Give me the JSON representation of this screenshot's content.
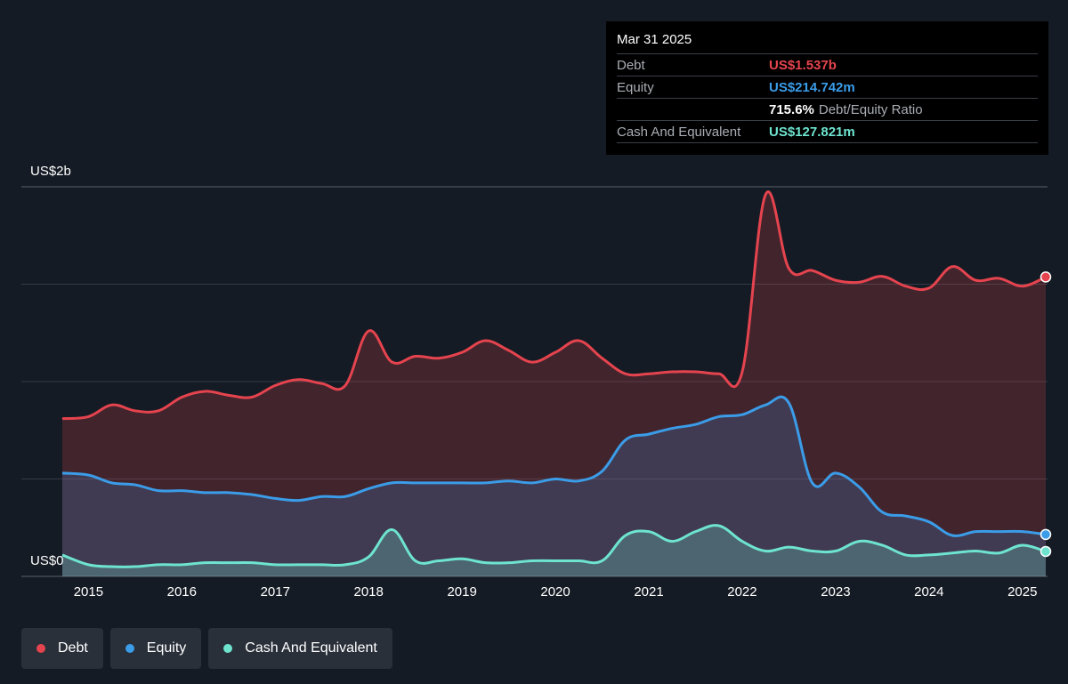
{
  "tooltip": {
    "date": "Mar 31 2025",
    "rows": [
      {
        "label": "Debt",
        "value": "US$1.537b",
        "color": "#e5444e"
      },
      {
        "label": "Equity",
        "value": "US$214.742m",
        "color": "#3b9ce8"
      },
      {
        "label": "Cash And Equivalent",
        "value": "US$127.821m",
        "color": "#6ee4cf"
      }
    ],
    "ratio_value": "715.6%",
    "ratio_label": "Debt/Equity Ratio"
  },
  "legend": [
    {
      "label": "Debt",
      "color": "#e5444e"
    },
    {
      "label": "Equity",
      "color": "#3b9ce8"
    },
    {
      "label": "Cash And Equivalent",
      "color": "#6ee4cf"
    }
  ],
  "chart_data": {
    "type": "area",
    "y_axis": {
      "top_label": "US$2b",
      "bottom_label": "US$0",
      "ylim": [
        0,
        2.0
      ],
      "unit": "US$ billions"
    },
    "x_ticks": [
      "2015",
      "2016",
      "2017",
      "2018",
      "2019",
      "2020",
      "2021",
      "2022",
      "2023",
      "2024",
      "2025"
    ],
    "xlim": [
      2014.72,
      2025.25
    ],
    "grid": true,
    "series": [
      {
        "name": "Debt",
        "color": "#e5444e",
        "x": [
          2014.72,
          2015.0,
          2015.25,
          2015.5,
          2015.75,
          2016.0,
          2016.25,
          2016.5,
          2016.75,
          2017.0,
          2017.25,
          2017.5,
          2017.75,
          2018.0,
          2018.25,
          2018.5,
          2018.75,
          2019.0,
          2019.25,
          2019.5,
          2019.75,
          2020.0,
          2020.25,
          2020.5,
          2020.75,
          2021.0,
          2021.25,
          2021.5,
          2021.75,
          2022.0,
          2022.25,
          2022.5,
          2022.75,
          2023.0,
          2023.25,
          2023.5,
          2023.75,
          2024.0,
          2024.25,
          2024.5,
          2024.75,
          2025.0,
          2025.25
        ],
        "values": [
          0.81,
          0.82,
          0.88,
          0.85,
          0.85,
          0.92,
          0.95,
          0.93,
          0.92,
          0.98,
          1.01,
          0.99,
          0.98,
          1.26,
          1.1,
          1.13,
          1.12,
          1.15,
          1.21,
          1.16,
          1.1,
          1.15,
          1.21,
          1.12,
          1.04,
          1.04,
          1.05,
          1.05,
          1.04,
          1.05,
          1.96,
          1.58,
          1.57,
          1.52,
          1.51,
          1.54,
          1.49,
          1.48,
          1.59,
          1.52,
          1.53,
          1.49,
          1.537
        ]
      },
      {
        "name": "Equity",
        "color": "#3b9ce8",
        "x": [
          2014.72,
          2015.0,
          2015.25,
          2015.5,
          2015.75,
          2016.0,
          2016.25,
          2016.5,
          2016.75,
          2017.0,
          2017.25,
          2017.5,
          2017.75,
          2018.0,
          2018.25,
          2018.5,
          2018.75,
          2019.0,
          2019.25,
          2019.5,
          2019.75,
          2020.0,
          2020.25,
          2020.5,
          2020.75,
          2021.0,
          2021.25,
          2021.5,
          2021.75,
          2022.0,
          2022.25,
          2022.5,
          2022.75,
          2023.0,
          2023.25,
          2023.5,
          2023.75,
          2024.0,
          2024.25,
          2024.5,
          2024.75,
          2025.0,
          2025.25
        ],
        "values": [
          0.53,
          0.52,
          0.48,
          0.47,
          0.44,
          0.44,
          0.43,
          0.43,
          0.42,
          0.4,
          0.39,
          0.41,
          0.41,
          0.45,
          0.48,
          0.48,
          0.48,
          0.48,
          0.48,
          0.49,
          0.48,
          0.5,
          0.49,
          0.54,
          0.7,
          0.73,
          0.76,
          0.78,
          0.82,
          0.83,
          0.88,
          0.89,
          0.48,
          0.53,
          0.46,
          0.33,
          0.31,
          0.28,
          0.21,
          0.23,
          0.23,
          0.23,
          0.215
        ]
      },
      {
        "name": "Cash And Equivalent",
        "color": "#6ee4cf",
        "x": [
          2014.72,
          2015.0,
          2015.25,
          2015.5,
          2015.75,
          2016.0,
          2016.25,
          2016.5,
          2016.75,
          2017.0,
          2017.25,
          2017.5,
          2017.75,
          2018.0,
          2018.25,
          2018.5,
          2018.75,
          2019.0,
          2019.25,
          2019.5,
          2019.75,
          2020.0,
          2020.25,
          2020.5,
          2020.75,
          2021.0,
          2021.25,
          2021.5,
          2021.75,
          2022.0,
          2022.25,
          2022.5,
          2022.75,
          2023.0,
          2023.25,
          2023.5,
          2023.75,
          2024.0,
          2024.25,
          2024.5,
          2024.75,
          2025.0,
          2025.25
        ],
        "values": [
          0.11,
          0.06,
          0.05,
          0.05,
          0.06,
          0.06,
          0.07,
          0.07,
          0.07,
          0.06,
          0.06,
          0.06,
          0.06,
          0.1,
          0.24,
          0.08,
          0.08,
          0.09,
          0.07,
          0.07,
          0.08,
          0.08,
          0.08,
          0.08,
          0.21,
          0.23,
          0.18,
          0.23,
          0.26,
          0.18,
          0.13,
          0.15,
          0.13,
          0.13,
          0.18,
          0.16,
          0.11,
          0.11,
          0.12,
          0.13,
          0.12,
          0.16,
          0.128
        ]
      }
    ]
  }
}
